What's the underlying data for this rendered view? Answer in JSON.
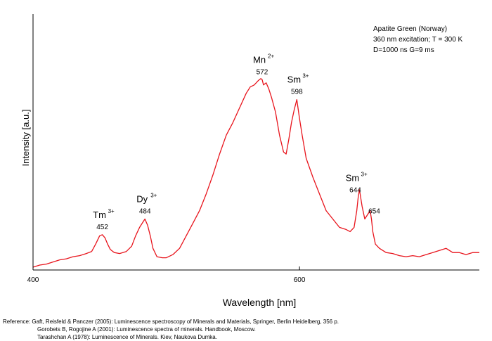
{
  "chart_data": {
    "type": "line",
    "title": "",
    "xlabel": "Wavelength [nm]",
    "ylabel": "Intensity [a.u.]",
    "xlim": [
      400,
      735
    ],
    "ylim": [
      0,
      100
    ],
    "x_ticks": [
      400,
      600
    ],
    "y_ticks_shown": false,
    "grid": false,
    "line_color": "#e8141c",
    "info_box": {
      "line1": "Apatite Green (Norway)",
      "line2": "360 nm excitation; T = 300 K",
      "line3": "D=1000 ns G=9 ms"
    },
    "annotations": [
      {
        "ion": "Tm",
        "charge": "3+",
        "wavelength": "452",
        "x": 452
      },
      {
        "ion": "Dy",
        "charge": "3+",
        "wavelength": "484",
        "x": 484
      },
      {
        "ion": "Mn",
        "charge": "2+",
        "wavelength": "572",
        "x": 572
      },
      {
        "ion": "Sm",
        "charge": "3+",
        "wavelength": "598",
        "x": 598
      },
      {
        "ion": "Sm",
        "charge": "3+",
        "wavelength": "644",
        "x": 644
      },
      {
        "ion": "",
        "charge": "",
        "wavelength": "654",
        "x": 654
      }
    ],
    "series": [
      {
        "x": [
          400,
          405,
          410,
          415,
          420,
          425,
          430,
          435,
          440,
          444,
          447,
          450,
          452,
          454,
          456,
          458,
          461,
          465,
          470,
          474,
          477,
          480,
          482,
          484,
          486,
          488,
          490,
          493,
          497,
          500,
          505,
          510,
          515,
          520,
          525,
          530,
          535,
          540,
          545,
          550,
          555,
          560,
          563,
          566,
          569,
          571,
          572,
          573,
          575,
          577,
          579,
          582,
          585,
          588,
          590,
          592,
          594,
          596,
          598,
          600,
          602,
          605,
          610,
          615,
          620,
          625,
          630,
          635,
          638,
          641,
          643,
          644,
          645,
          647,
          649,
          651,
          653,
          654,
          655,
          657,
          660,
          665,
          670,
          675,
          680,
          685,
          690,
          695,
          700,
          705,
          710,
          715,
          720,
          725,
          730,
          735
        ],
        "y": [
          1,
          2,
          2.5,
          3.5,
          4.5,
          5,
          6,
          6.5,
          7.5,
          8.5,
          12,
          16,
          16.5,
          15,
          12,
          9.5,
          8,
          7.5,
          8.5,
          11,
          16,
          20,
          22,
          24,
          21,
          16,
          10,
          6,
          5.5,
          5.5,
          7,
          10,
          16,
          22,
          28,
          36,
          45,
          55,
          64,
          70,
          77,
          84,
          87,
          88,
          90,
          91,
          90.5,
          88,
          89,
          86,
          82,
          75,
          64,
          56,
          55,
          62,
          70,
          76,
          81,
          72,
          64,
          53,
          44,
          36,
          28,
          24,
          20,
          19,
          18,
          20,
          28,
          34,
          38,
          30,
          24,
          26,
          28,
          24,
          18,
          12,
          10,
          8,
          7.5,
          6.5,
          6,
          6.5,
          6,
          7,
          8,
          9,
          10,
          8,
          8,
          7,
          8,
          8
        ]
      }
    ]
  },
  "references": {
    "line1": "Reference: Gaft, Reisfeld & Panczer (2005): Luminescence spectroscopy of Minerals and Materials, Springer, Berlin Heidelberg, 356 p.",
    "line2": "Gorobets B, Rogojine A (2001): Luminescence spectra of minerals. Handbook, Moscow.",
    "line3": "Tarashchan A (1978): Luminescence of Minerals. Kiev, Naukova Dumka."
  }
}
